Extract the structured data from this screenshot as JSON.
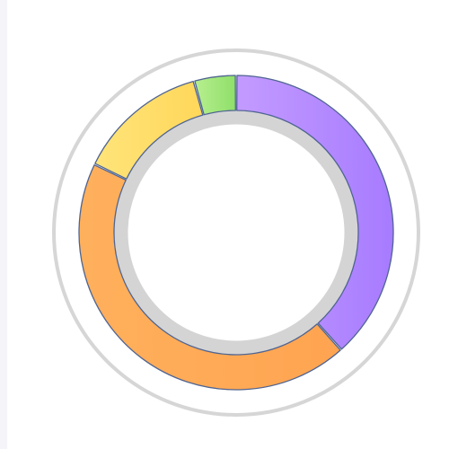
{
  "chart_data": {
    "type": "pie",
    "style": "donut",
    "title": "",
    "legend": "none",
    "slices": [
      {
        "value": 35.5,
        "color_start": "#c39bff",
        "color_end": "#a77bff"
      },
      {
        "value": 40.5,
        "color_start": "#ffb05c",
        "color_end": "#ffa451"
      },
      {
        "value": 12.5,
        "color_start": "#ffe47a",
        "color_end": "#ffd75a"
      },
      {
        "value": 4.0,
        "color_start": "#b7ef8f",
        "color_end": "#8fdf6a"
      }
    ],
    "colors": {
      "outline": "#4f6491",
      "outer_ring": "#d6d6d6",
      "inner_ring": "#d4d4d4",
      "background": "#ffffff",
      "left_strip": "#f4f4f9"
    }
  }
}
